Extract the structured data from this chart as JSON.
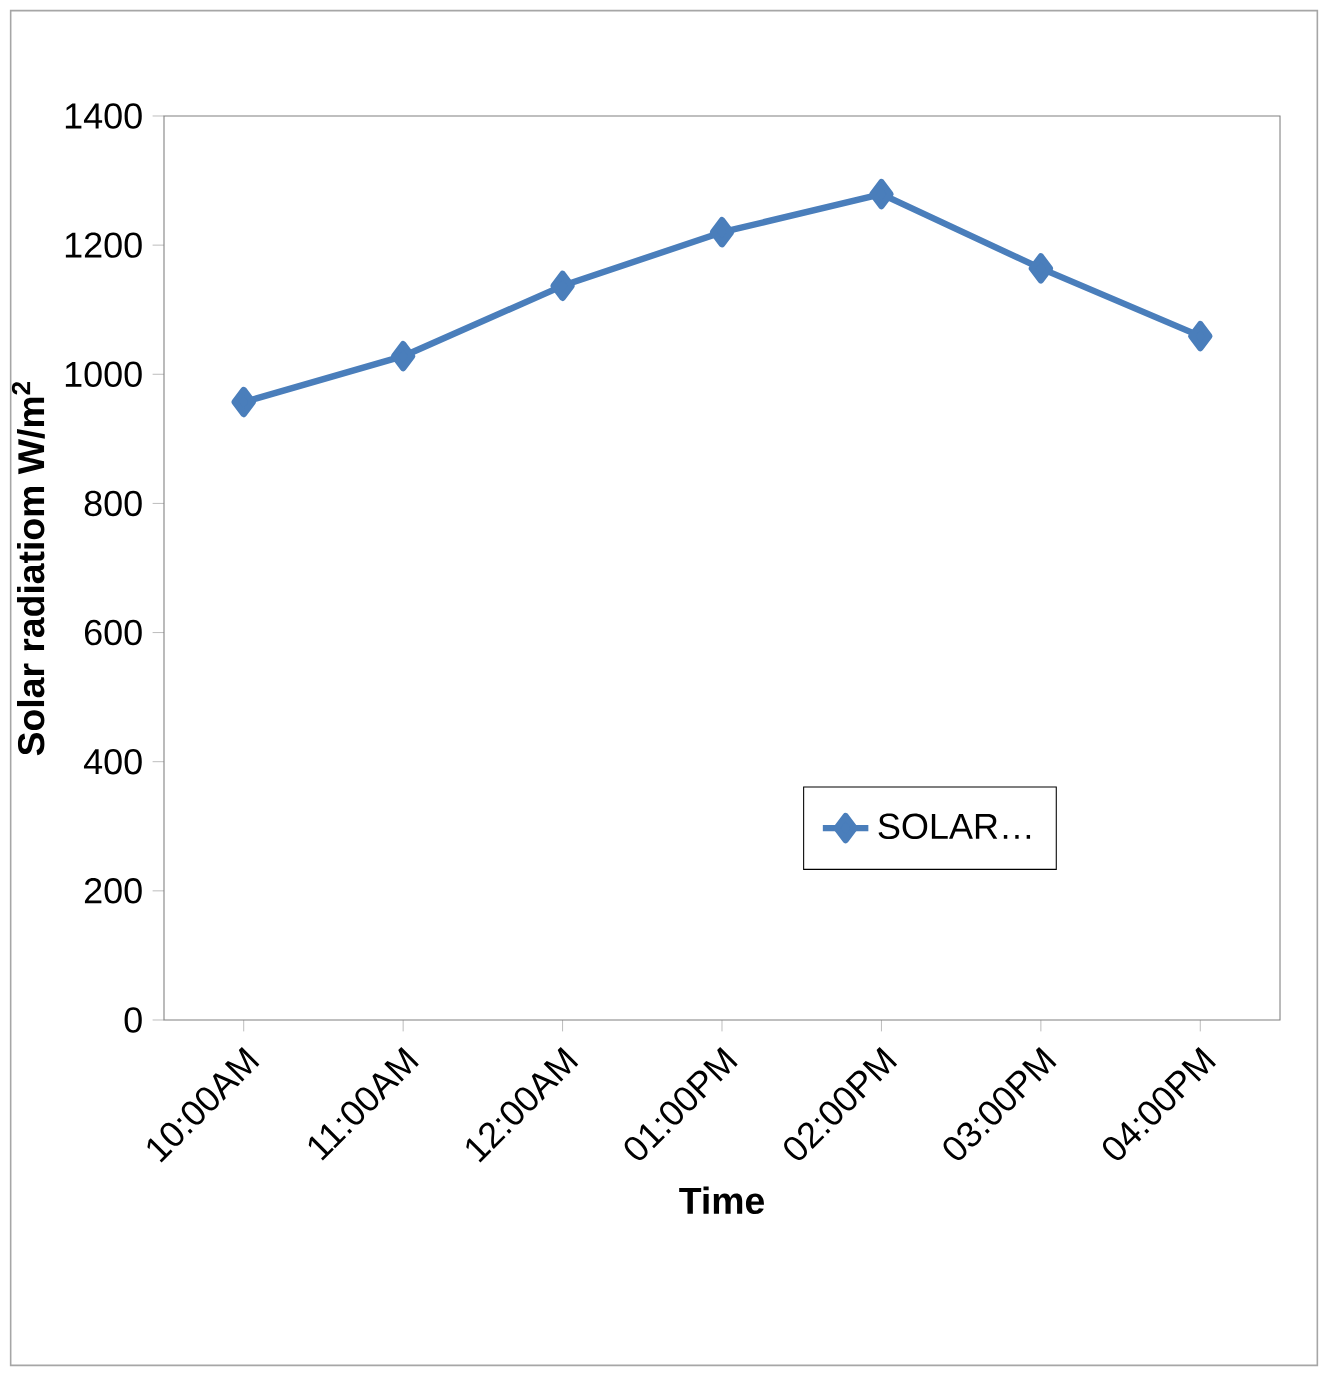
{
  "chart_data": {
    "type": "line",
    "xlabel": "Time",
    "ylabel": "Solar radiatiom W/m$^{2}$",
    "categories": [
      "10:00AM",
      "11:00AM",
      "12:00AM",
      "01:00PM",
      "02:00PM",
      "03:00PM",
      "04:00PM"
    ],
    "series": [
      {
        "name": "SOLAR…",
        "color": "#4a7ebb",
        "values": [
          957,
          1028,
          1137,
          1220,
          1279,
          1164,
          1059
        ]
      }
    ],
    "ylim": [
      0,
      1400
    ],
    "yticks": [
      0,
      200,
      400,
      600,
      800,
      1000,
      1200,
      1400
    ],
    "legend": "bottom right",
    "marker": "diamond",
    "line_style": "solid",
    "grid": false
  }
}
